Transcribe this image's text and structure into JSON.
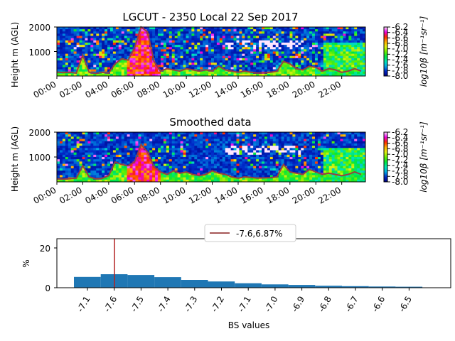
{
  "chart_data": [
    {
      "type": "heatmap",
      "title": "LGCUT - 2350 Local 22 Sep 2017",
      "ylabel": "Height m (AGL)",
      "xlabel": "",
      "yticks": [
        "1000",
        "2000"
      ],
      "ylim": [
        0,
        2000
      ],
      "xticks": [
        "00:00",
        "02:00",
        "04:00",
        "06:00",
        "08:00",
        "10:00",
        "12:00",
        "14:00",
        "16:00",
        "18:00",
        "20:00",
        "22:00"
      ],
      "xlim_hours": [
        0,
        23.83
      ],
      "colorbar": {
        "label": "log10β [m⁻¹sr⁻¹]",
        "ticks": [
          "-6.2",
          "-6.4",
          "-6.6",
          "-6.8",
          "-7.0",
          "-7.2",
          "-7.4",
          "-7.6",
          "-7.8",
          "-8.0"
        ],
        "range": [
          -8.0,
          -6.2
        ],
        "colormap": "gist_ncar"
      },
      "line_color": "#9a3f3f",
      "line_hours": [
        0,
        0.5,
        1,
        1.5,
        2,
        2.5,
        3,
        3.5,
        4,
        4.5,
        5,
        5.5,
        6,
        6.5,
        7,
        7.5,
        8,
        8.5,
        9,
        9.5,
        10,
        10.5,
        11,
        11.5,
        12,
        12.5,
        13,
        13.5,
        14,
        14.5,
        15,
        15.5,
        16,
        16.5,
        17,
        17.5,
        18,
        18.5,
        19,
        19.5,
        20,
        20.5,
        21,
        21.5,
        22,
        22.5,
        23,
        23.5
      ],
      "line_heights": [
        160,
        140,
        150,
        120,
        850,
        150,
        100,
        150,
        120,
        500,
        700,
        650,
        1150,
        2000,
        1800,
        600,
        200,
        300,
        250,
        200,
        300,
        250,
        200,
        250,
        200,
        400,
        250,
        200,
        150,
        200,
        150,
        120,
        130,
        150,
        200,
        600,
        500,
        300,
        250,
        400,
        350,
        200,
        300,
        250,
        150,
        200,
        300,
        200
      ]
    },
    {
      "type": "heatmap",
      "title": "Smoothed data",
      "ylabel": "Height m (AGL)",
      "xlabel": "",
      "yticks": [
        "1000",
        "2000"
      ],
      "ylim": [
        0,
        2000
      ],
      "xticks": [
        "00:00",
        "02:00",
        "04:00",
        "06:00",
        "08:00",
        "10:00",
        "12:00",
        "14:00",
        "16:00",
        "18:00",
        "20:00",
        "22:00"
      ],
      "xlim_hours": [
        0,
        23.83
      ],
      "colorbar": {
        "label": "log10β [m⁻¹sr⁻¹]",
        "ticks": [
          "-6.2",
          "-6.4",
          "-6.6",
          "-6.8",
          "-7.0",
          "-7.2",
          "-7.4",
          "-7.6",
          "-7.8",
          "-8.0"
        ],
        "range": [
          -8.0,
          -6.2
        ],
        "colormap": "gist_ncar"
      },
      "line_color": "#9a3f3f",
      "line_hours": [
        0,
        0.5,
        1,
        1.5,
        2,
        2.5,
        3,
        3.5,
        4,
        4.5,
        5,
        5.5,
        6,
        6.5,
        7,
        7.5,
        8,
        8.5,
        9,
        9.5,
        10,
        10.5,
        11,
        11.5,
        12,
        12.5,
        13,
        13.5,
        14,
        14.5,
        15,
        15.5,
        16,
        16.5,
        17,
        17.5,
        18,
        18.5,
        19,
        19.5,
        20,
        20.5,
        21,
        21.5,
        22,
        22.5,
        23,
        23.5
      ],
      "line_heights": [
        120,
        110,
        130,
        150,
        650,
        200,
        120,
        140,
        250,
        800,
        700,
        650,
        800,
        1500,
        1200,
        600,
        400,
        300,
        450,
        350,
        400,
        300,
        250,
        300,
        450,
        350,
        300,
        200,
        150,
        200,
        180,
        150,
        160,
        170,
        200,
        700,
        400,
        350,
        300,
        500,
        400,
        300,
        350,
        300,
        250,
        300,
        400,
        300
      ]
    },
    {
      "type": "bar",
      "title": "",
      "xlabel": "BS values",
      "ylabel": "%",
      "ylim": [
        0,
        25
      ],
      "yticks": [
        "0",
        "20"
      ],
      "categories": [
        "-7.1",
        "-7.6",
        "-7.5",
        "-7.4",
        "-7.3",
        "-7.2",
        "-7.1",
        "-7.0",
        "-6.9",
        "-6.8",
        "-6.7",
        "-6.6",
        "-6.5"
      ],
      "values": [
        5.5,
        6.87,
        6.5,
        5.4,
        4.0,
        3.2,
        2.3,
        1.7,
        1.4,
        1.0,
        0.8,
        0.6,
        0.5
      ],
      "bar_color": "#1f77b4",
      "marker_category_index": 1,
      "marker_color": "#b22222",
      "legend": {
        "label": "-7.6,6.87%",
        "position": "top-center"
      }
    }
  ]
}
